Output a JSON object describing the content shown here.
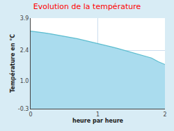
{
  "chart_data": {
    "type": "area",
    "title": "Evolution de la température",
    "x_label": "heure par heure",
    "y_label": "Température en °C",
    "x": [
      0,
      0.1,
      0.2,
      0.3,
      0.4,
      0.5,
      0.6,
      0.7,
      0.8,
      0.9,
      1.0,
      1.1,
      1.2,
      1.3,
      1.4,
      1.5,
      1.6,
      1.7,
      1.8,
      1.9,
      2.0
    ],
    "values": [
      3.3,
      3.27,
      3.22,
      3.17,
      3.12,
      3.06,
      3.0,
      2.94,
      2.87,
      2.8,
      2.73,
      2.65,
      2.57,
      2.49,
      2.4,
      2.32,
      2.24,
      2.15,
      2.05,
      1.88,
      1.75
    ],
    "color": "#5bbcce",
    "xlim": [
      0,
      2
    ],
    "xticks": [
      0,
      1,
      2
    ],
    "ylim": [
      -0.3,
      3.9
    ],
    "yticks": [
      -0.3,
      {
        "value": 1.0,
        "label": "1.0"
      },
      2.4,
      3.9
    ],
    "grid": true
  }
}
